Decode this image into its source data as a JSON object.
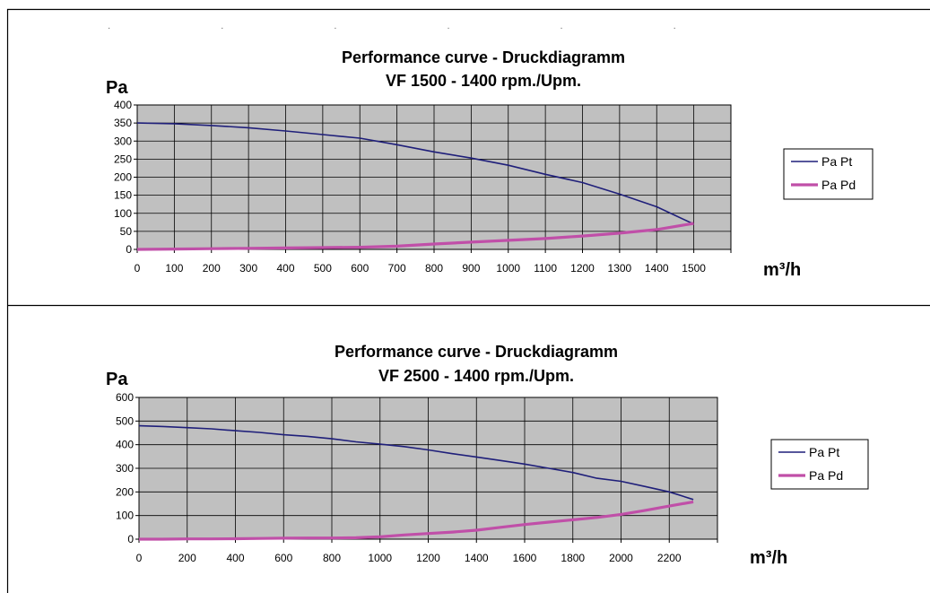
{
  "header_fragment": "· · · · · ·",
  "charts": [
    {
      "title": "Performance curve - Druckdiagramm",
      "subtitle": "VF 1500 - 1400 rpm./Upm.",
      "ylabel": "Pa",
      "xlabel": "m³/h"
    },
    {
      "title": "Performance curve - Druckdiagramm",
      "subtitle": "VF 2500 - 1400 rpm./Upm.",
      "ylabel": "Pa",
      "xlabel": "m³/h"
    }
  ],
  "chart_data": [
    {
      "type": "line",
      "title": "Performance curve - Druckdiagramm",
      "subtitle": "VF 1500 - 1400 rpm./Upm.",
      "xlabel": "m³/h",
      "ylabel": "Pa",
      "xlim": [
        0,
        1600
      ],
      "ylim": [
        0,
        400
      ],
      "xticks": [
        0,
        100,
        200,
        300,
        400,
        500,
        600,
        700,
        800,
        900,
        1000,
        1100,
        1200,
        1300,
        1400,
        1500
      ],
      "yticks": [
        0,
        50,
        100,
        150,
        200,
        250,
        300,
        350,
        400
      ],
      "grid": true,
      "plot_background": "#c0c0c0",
      "legend_position": "right",
      "series": [
        {
          "name": "Pa Pt",
          "color": "#1f1f7a",
          "x": [
            0,
            100,
            200,
            300,
            400,
            500,
            600,
            700,
            800,
            900,
            1000,
            1100,
            1200,
            1300,
            1400,
            1500
          ],
          "y": [
            350,
            348,
            343,
            337,
            328,
            318,
            308,
            290,
            270,
            253,
            233,
            208,
            185,
            153,
            118,
            70
          ]
        },
        {
          "name": "Pa Pd",
          "color": "#c04fa8",
          "x": [
            0,
            100,
            200,
            300,
            400,
            500,
            600,
            700,
            800,
            900,
            1000,
            1100,
            1200,
            1300,
            1400,
            1500
          ],
          "y": [
            0,
            1,
            2,
            3,
            4,
            5,
            6,
            9,
            15,
            20,
            25,
            30,
            37,
            45,
            55,
            72
          ]
        }
      ]
    },
    {
      "type": "line",
      "title": "Performance curve - Druckdiagramm",
      "subtitle": "VF 2500 - 1400 rpm./Upm.",
      "xlabel": "m³/h",
      "ylabel": "Pa",
      "xlim": [
        0,
        2400
      ],
      "ylim": [
        0,
        600
      ],
      "xticks": [
        0,
        200,
        400,
        600,
        800,
        1000,
        1200,
        1400,
        1600,
        1800,
        2000,
        2200
      ],
      "yticks": [
        0,
        100,
        200,
        300,
        400,
        500,
        600
      ],
      "grid": true,
      "plot_background": "#c0c0c0",
      "legend_position": "right",
      "series": [
        {
          "name": "Pa Pt",
          "color": "#1f1f7a",
          "x": [
            0,
            100,
            200,
            300,
            400,
            500,
            600,
            700,
            800,
            900,
            1000,
            1100,
            1200,
            1300,
            1400,
            1500,
            1600,
            1700,
            1800,
            1900,
            2000,
            2100,
            2200,
            2300
          ],
          "y": [
            480,
            477,
            472,
            467,
            459,
            452,
            442,
            435,
            425,
            412,
            402,
            392,
            378,
            362,
            348,
            333,
            318,
            300,
            282,
            258,
            245,
            223,
            200,
            168
          ]
        },
        {
          "name": "Pa Pd",
          "color": "#c04fa8",
          "x": [
            0,
            100,
            200,
            300,
            400,
            500,
            600,
            700,
            800,
            900,
            1000,
            1100,
            1200,
            1300,
            1400,
            1500,
            1600,
            1700,
            1800,
            1900,
            2000,
            2100,
            2200,
            2300
          ],
          "y": [
            0,
            0,
            1,
            1,
            2,
            3,
            4,
            5,
            5,
            6,
            10,
            18,
            24,
            30,
            38,
            50,
            62,
            72,
            82,
            92,
            105,
            122,
            140,
            158
          ]
        }
      ]
    }
  ]
}
